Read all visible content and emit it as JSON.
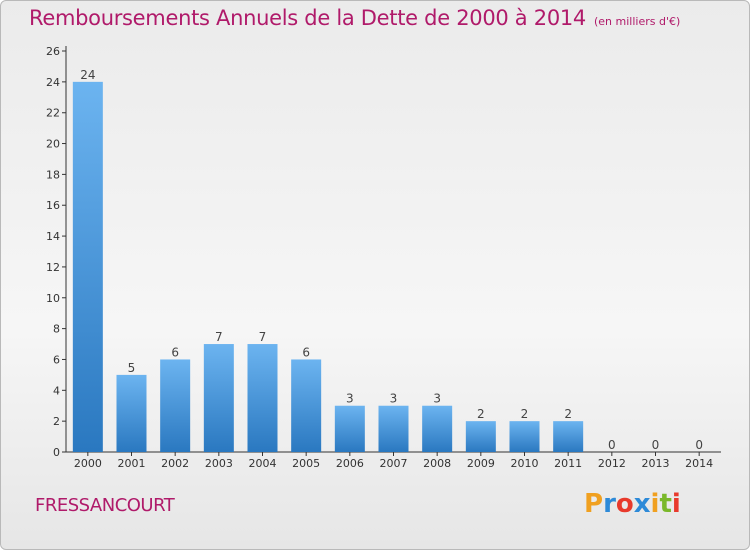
{
  "title": "Remboursements Annuels de la Dette de 2000 à 2014",
  "subtitle": "(en milliers d'€)",
  "commune": "FRESSANCOURT",
  "logo": {
    "letters": [
      "P",
      "r",
      "o",
      "x",
      "i",
      "t",
      "i"
    ],
    "colors": [
      "#f0a020",
      "#2d8ad8",
      "#e83a2c",
      "#2d8ad8",
      "#f0a020",
      "#7ab82a",
      "#e83a2c"
    ]
  },
  "colors": {
    "bar_light": "#6cb4f0",
    "bar_dark": "#2a78c0",
    "title": "#b01a6a"
  },
  "chart_data": {
    "type": "bar",
    "categories": [
      "2000",
      "2001",
      "2002",
      "2003",
      "2004",
      "2005",
      "2006",
      "2007",
      "2008",
      "2009",
      "2010",
      "2011",
      "2012",
      "2013",
      "2014"
    ],
    "values": [
      24,
      5,
      6,
      7,
      7,
      6,
      3,
      3,
      3,
      2,
      2,
      2,
      0,
      0,
      0
    ],
    "yticks": [
      0,
      2,
      4,
      6,
      8,
      10,
      12,
      14,
      16,
      18,
      20,
      22,
      24,
      26
    ],
    "ylim": [
      0,
      26
    ],
    "grid": false,
    "xlabel": "",
    "ylabel": ""
  }
}
